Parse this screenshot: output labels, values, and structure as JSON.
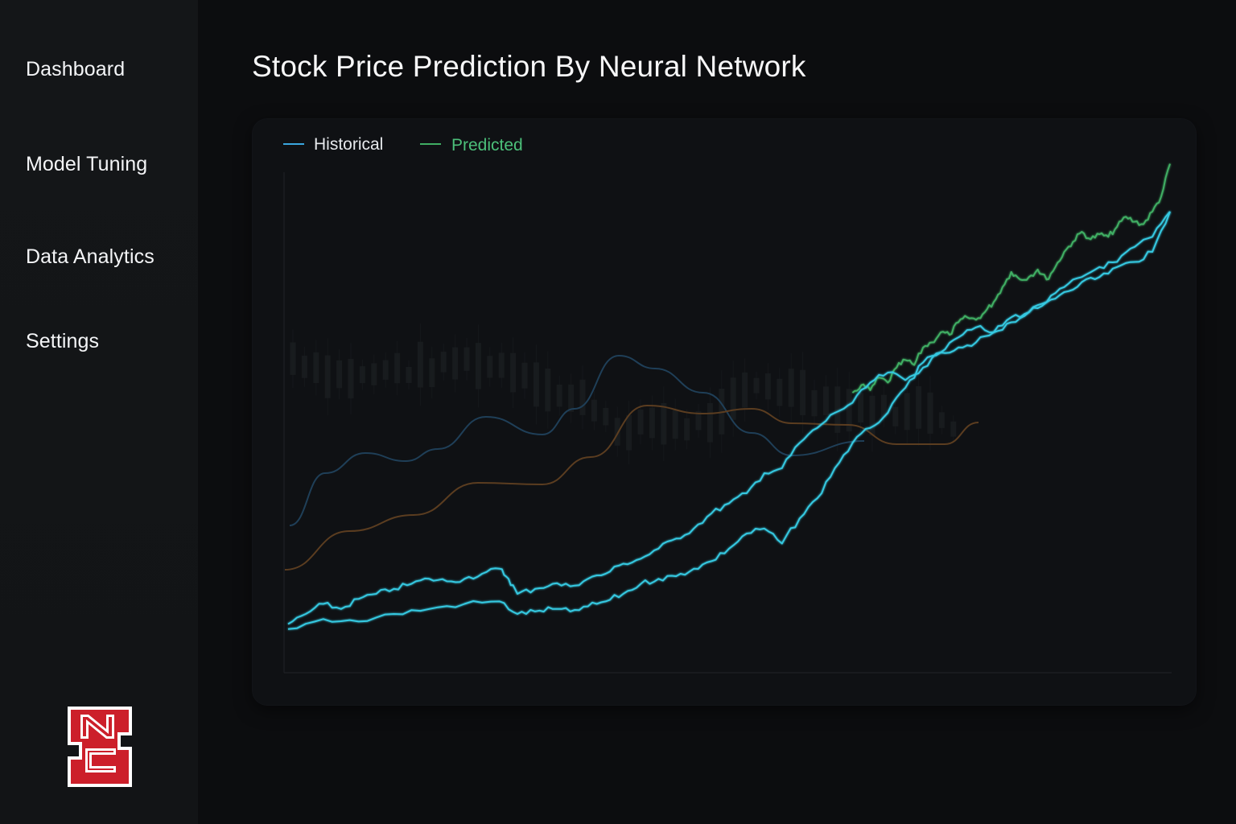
{
  "nav": {
    "items": [
      {
        "label": "Dashboard"
      },
      {
        "label": "Model Tuning"
      },
      {
        "label": "Data Analytics"
      },
      {
        "label": "Settings"
      }
    ]
  },
  "logo": {
    "text": "NCS",
    "color": "#cc1f2a"
  },
  "page": {
    "title": "Stock Price Prediction By Neural Network"
  },
  "colors": {
    "historical": "#3aa7e0",
    "predicted": "#3fae63",
    "cyan_lines": "#35c8e0",
    "background_ma_blue": "#1f3f58",
    "background_ma_orange": "#5b3d20",
    "candles": "#1a1d20"
  },
  "chart_data": {
    "type": "line",
    "title": "",
    "xlabel": "",
    "ylabel": "",
    "grid": false,
    "legend": {
      "position": "top-left",
      "entries": [
        {
          "name": "Historical",
          "color": "#3aa7e0"
        },
        {
          "name": "Predicted",
          "color": "#3fae63"
        }
      ]
    },
    "xlim": [
      0,
      100
    ],
    "ylim": [
      0,
      100
    ],
    "series": [
      {
        "name": "Predicted",
        "role": "predicted",
        "x": [
          64,
          65,
          66,
          67,
          68,
          69,
          70,
          71,
          72,
          73,
          74,
          75,
          76,
          77,
          78,
          79,
          80,
          81,
          82,
          83,
          84,
          85,
          86,
          87,
          88,
          89,
          90,
          91,
          92,
          93,
          94,
          95,
          96,
          97,
          98,
          99,
          100
        ],
        "y": [
          52,
          53.5,
          52.5,
          55,
          54,
          57,
          58.5,
          57.5,
          61,
          62,
          64,
          63.5,
          66,
          67,
          66.5,
          68,
          70,
          73,
          76,
          74.5,
          75,
          76.5,
          74.5,
          77,
          80,
          82,
          84,
          82.5,
          83.5,
          83,
          85,
          87,
          86,
          85.5,
          88,
          91,
          97.5
        ]
      },
      {
        "name": "Upper cyan",
        "role": "cyan",
        "x": [
          0,
          2,
          4,
          6,
          8,
          10,
          12,
          14,
          16,
          18,
          20,
          22,
          24,
          25,
          26,
          28,
          30,
          32,
          34,
          36,
          38,
          40,
          42,
          44,
          46,
          48,
          50,
          52,
          54,
          56,
          58,
          60,
          62,
          64,
          66,
          68,
          70,
          72,
          74,
          76,
          78,
          80,
          82,
          84,
          86,
          88,
          90,
          92,
          94,
          96,
          98,
          100
        ],
        "y": [
          6,
          8,
          10,
          9,
          11,
          12,
          13,
          14,
          15,
          14.5,
          15,
          16,
          17,
          15,
          12,
          13,
          14,
          13.5,
          15,
          16,
          18,
          19,
          21,
          23,
          25,
          28,
          30,
          32,
          36,
          37,
          42,
          45,
          48,
          50,
          54,
          56,
          54.5,
          57,
          60,
          61,
          62,
          64,
          67,
          68,
          70,
          73,
          75,
          77,
          78,
          81,
          83,
          88
        ]
      },
      {
        "name": "Lower cyan",
        "role": "cyan",
        "x": [
          0,
          4,
          8,
          12,
          16,
          20,
          24,
          26,
          28,
          30,
          32,
          34,
          36,
          38,
          40,
          42,
          44,
          46,
          48,
          50,
          52,
          54,
          56,
          58,
          60,
          62,
          64,
          66,
          68,
          70,
          72,
          74,
          76,
          78,
          80,
          82,
          84,
          86,
          88,
          90,
          92,
          94,
          96,
          98,
          100
        ],
        "y": [
          5,
          7,
          6.5,
          8,
          9,
          10,
          10.5,
          8,
          8.5,
          9,
          8.5,
          9.5,
          10.5,
          12,
          14,
          15,
          15.5,
          17,
          18.5,
          21,
          24,
          25,
          22,
          27,
          31,
          37,
          42,
          45,
          48,
          53,
          58,
          60,
          63,
          65,
          64,
          66,
          68,
          70,
          72,
          74,
          75,
          77,
          78,
          80,
          88
        ]
      }
    ]
  }
}
